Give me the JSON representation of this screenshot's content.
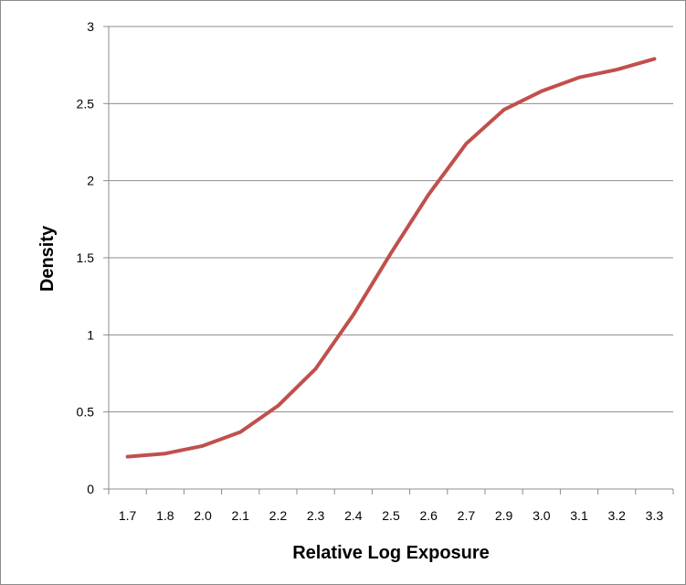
{
  "chart_data": {
    "type": "line",
    "title": "",
    "xlabel": "Relative Log Exposure",
    "ylabel": "Density",
    "categories": [
      "1.7",
      "1.8",
      "2.0",
      "2.1",
      "2.2",
      "2.3",
      "2.4",
      "2.5",
      "2.6",
      "2.7",
      "2.9",
      "3.0",
      "3.1",
      "3.2",
      "3.3"
    ],
    "series": [
      {
        "color": "#C0504D",
        "values": [
          0.21,
          0.23,
          0.28,
          0.37,
          0.54,
          0.78,
          1.13,
          1.53,
          1.91,
          2.24,
          2.46,
          2.58,
          2.67,
          2.72,
          2.79
        ]
      }
    ],
    "ylim": [
      0,
      3
    ],
    "yticks": [
      "0",
      "0.5",
      "1",
      "1.5",
      "2",
      "2.5",
      "3"
    ],
    "ytick_values": [
      0,
      0.5,
      1,
      1.5,
      2,
      2.5,
      3
    ],
    "grid": "horizontal",
    "legend": "none"
  }
}
